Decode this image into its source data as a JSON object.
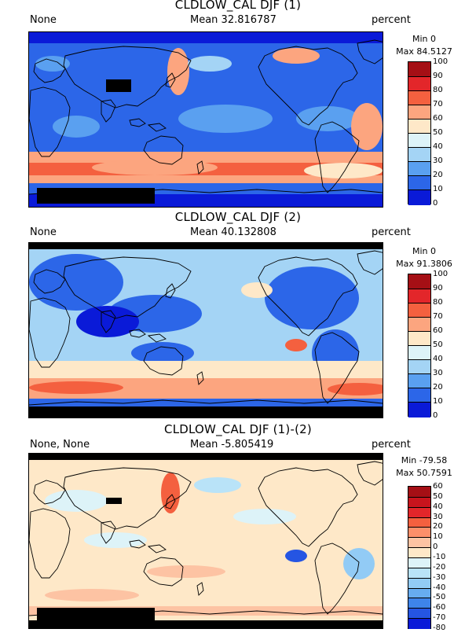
{
  "panels": [
    {
      "title": "CLDLOW_CAL DJF (1)",
      "left_label": "None",
      "mean_label": "Mean 32.816787",
      "units": "percent",
      "min_label": "Min 0",
      "max_label": "Max 84.5127",
      "colorbar": {
        "ticks": [
          "100",
          "90",
          "80",
          "70",
          "60",
          "50",
          "40",
          "30",
          "20",
          "10",
          "0"
        ],
        "colors": [
          "#a50f15",
          "#e3262a",
          "#f4603f",
          "#fca57f",
          "#fee8c8",
          "#ddf3f8",
          "#a4d4f5",
          "#5aa0f0",
          "#2c66e8",
          "#0a1ad8"
        ]
      }
    },
    {
      "title": "CLDLOW_CAL DJF (2)",
      "left_label": "None",
      "mean_label": "Mean 40.132808",
      "units": "percent",
      "min_label": "Min 0",
      "max_label": "Max 91.3806",
      "colorbar": {
        "ticks": [
          "100",
          "90",
          "80",
          "70",
          "60",
          "50",
          "40",
          "30",
          "20",
          "10",
          "0"
        ],
        "colors": [
          "#a50f15",
          "#e3262a",
          "#f4603f",
          "#fca57f",
          "#fee8c8",
          "#ddf3f8",
          "#a4d4f5",
          "#5aa0f0",
          "#2c66e8",
          "#0a1ad8"
        ]
      }
    },
    {
      "title": "CLDLOW_CAL DJF (1)-(2)",
      "left_label": "None, None",
      "mean_label": "Mean -5.805419",
      "units": "percent",
      "min_label": "Min -79.58",
      "max_label": "Max 50.7591",
      "colorbar": {
        "ticks": [
          "60",
          "50",
          "40",
          "30",
          "20",
          "10",
          "0",
          "-10",
          "-20",
          "-30",
          "-40",
          "-50",
          "-60",
          "-70",
          "-80"
        ],
        "colors": [
          "#a50f15",
          "#c8141d",
          "#e3262a",
          "#f4603f",
          "#fc8f6a",
          "#fdc3a3",
          "#fee8c8",
          "#ddf3f8",
          "#b9e3f8",
          "#92cbf5",
          "#67acf0",
          "#3e84ea",
          "#2555e3",
          "#0a1ad8"
        ]
      }
    }
  ],
  "chart_data": [
    {
      "type": "heatmap",
      "title": "CLDLOW_CAL DJF (1)",
      "variable": "CLDLOW_CAL",
      "season": "DJF",
      "units": "percent",
      "mean": 32.816787,
      "min": 0,
      "max": 84.5127,
      "colorbar_range": [
        0,
        100
      ],
      "colorbar_levels": [
        0,
        10,
        20,
        30,
        40,
        50,
        60,
        70,
        80,
        90,
        100
      ]
    },
    {
      "type": "heatmap",
      "title": "CLDLOW_CAL DJF (2)",
      "variable": "CLDLOW_CAL",
      "season": "DJF",
      "units": "percent",
      "mean": 40.132808,
      "min": 0,
      "max": 91.3806,
      "colorbar_range": [
        0,
        100
      ],
      "colorbar_levels": [
        0,
        10,
        20,
        30,
        40,
        50,
        60,
        70,
        80,
        90,
        100
      ]
    },
    {
      "type": "heatmap",
      "title": "CLDLOW_CAL DJF (1)-(2)",
      "variable": "CLDLOW_CAL",
      "season": "DJF",
      "units": "percent",
      "mean": -5.805419,
      "min": -79.58,
      "max": 50.7591,
      "colorbar_range": [
        -80,
        60
      ],
      "colorbar_levels": [
        -80,
        -70,
        -60,
        -50,
        -40,
        -30,
        -20,
        -10,
        0,
        10,
        20,
        30,
        40,
        50,
        60
      ]
    }
  ]
}
